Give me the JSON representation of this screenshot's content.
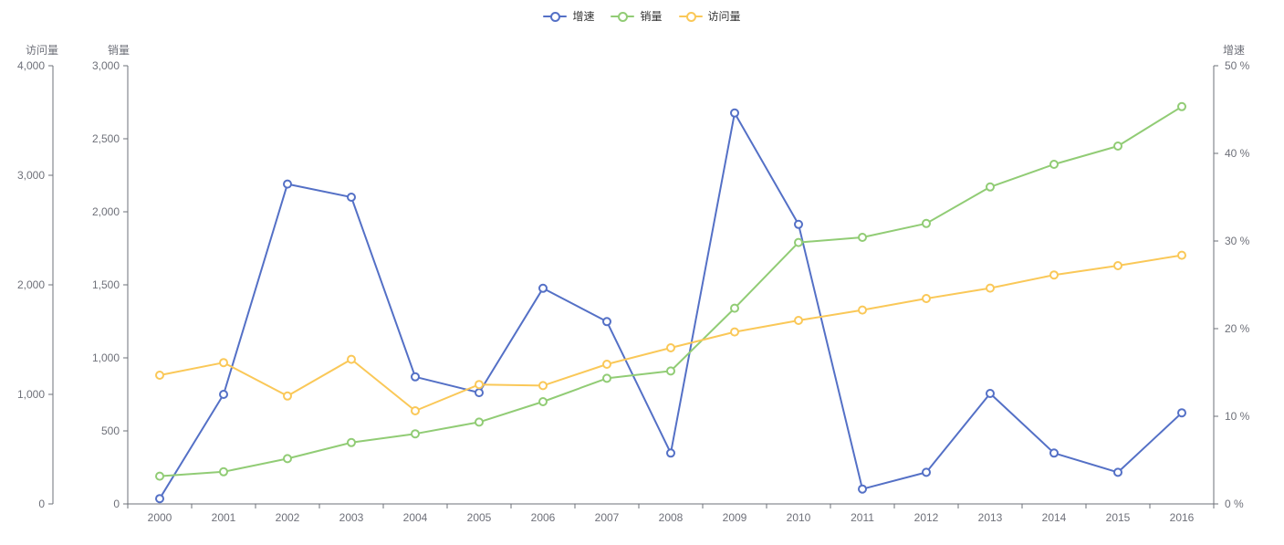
{
  "chart_data": {
    "type": "line",
    "categories": [
      "2000",
      "2001",
      "2002",
      "2003",
      "2004",
      "2005",
      "2006",
      "2007",
      "2008",
      "2009",
      "2010",
      "2011",
      "2012",
      "2013",
      "2014",
      "2015",
      "2016"
    ],
    "series": [
      {
        "id": "growth",
        "name": "增速",
        "color": "#5470c6",
        "axis": "percent",
        "values": [
          0.6,
          12.5,
          36.5,
          35.0,
          14.5,
          12.7,
          24.6,
          20.8,
          5.8,
          44.6,
          31.9,
          1.7,
          3.6,
          12.6,
          5.8,
          3.6,
          10.4
        ]
      },
      {
        "id": "sales",
        "name": "销量",
        "color": "#91cc75",
        "axis": "sales",
        "values": [
          190,
          220,
          310,
          420,
          480,
          560,
          700,
          860,
          910,
          1340,
          1790,
          1825,
          1920,
          2170,
          2325,
          2450,
          2720
        ]
      },
      {
        "id": "visits",
        "name": "访问量",
        "color": "#fac858",
        "axis": "visits",
        "values": [
          1175,
          1290,
          985,
          1320,
          850,
          1090,
          1080,
          1275,
          1425,
          1570,
          1675,
          1770,
          1875,
          1970,
          2090,
          2175,
          2270
        ]
      }
    ],
    "y_axes": {
      "visits": {
        "name": "访问量",
        "position": "left-outer",
        "min": 0,
        "max": 4000,
        "ticks": [
          0,
          1000,
          2000,
          3000,
          4000
        ],
        "suffix": ""
      },
      "sales": {
        "name": "销量",
        "position": "left-inner",
        "min": 0,
        "max": 3000,
        "ticks": [
          0,
          500,
          1000,
          1500,
          2000,
          2500,
          3000
        ],
        "suffix": ""
      },
      "percent": {
        "name": "增速",
        "position": "right",
        "min": 0,
        "max": 50,
        "ticks": [
          0,
          10,
          20,
          30,
          40,
          50
        ],
        "suffix": " %"
      }
    },
    "xlabel": "",
    "title": "",
    "legend_position": "top-center",
    "grid": false,
    "colors": {
      "axis_line": "#6E7079",
      "tick_label": "#6E7079",
      "legend_text": "#333333",
      "background": "#ffffff"
    }
  }
}
